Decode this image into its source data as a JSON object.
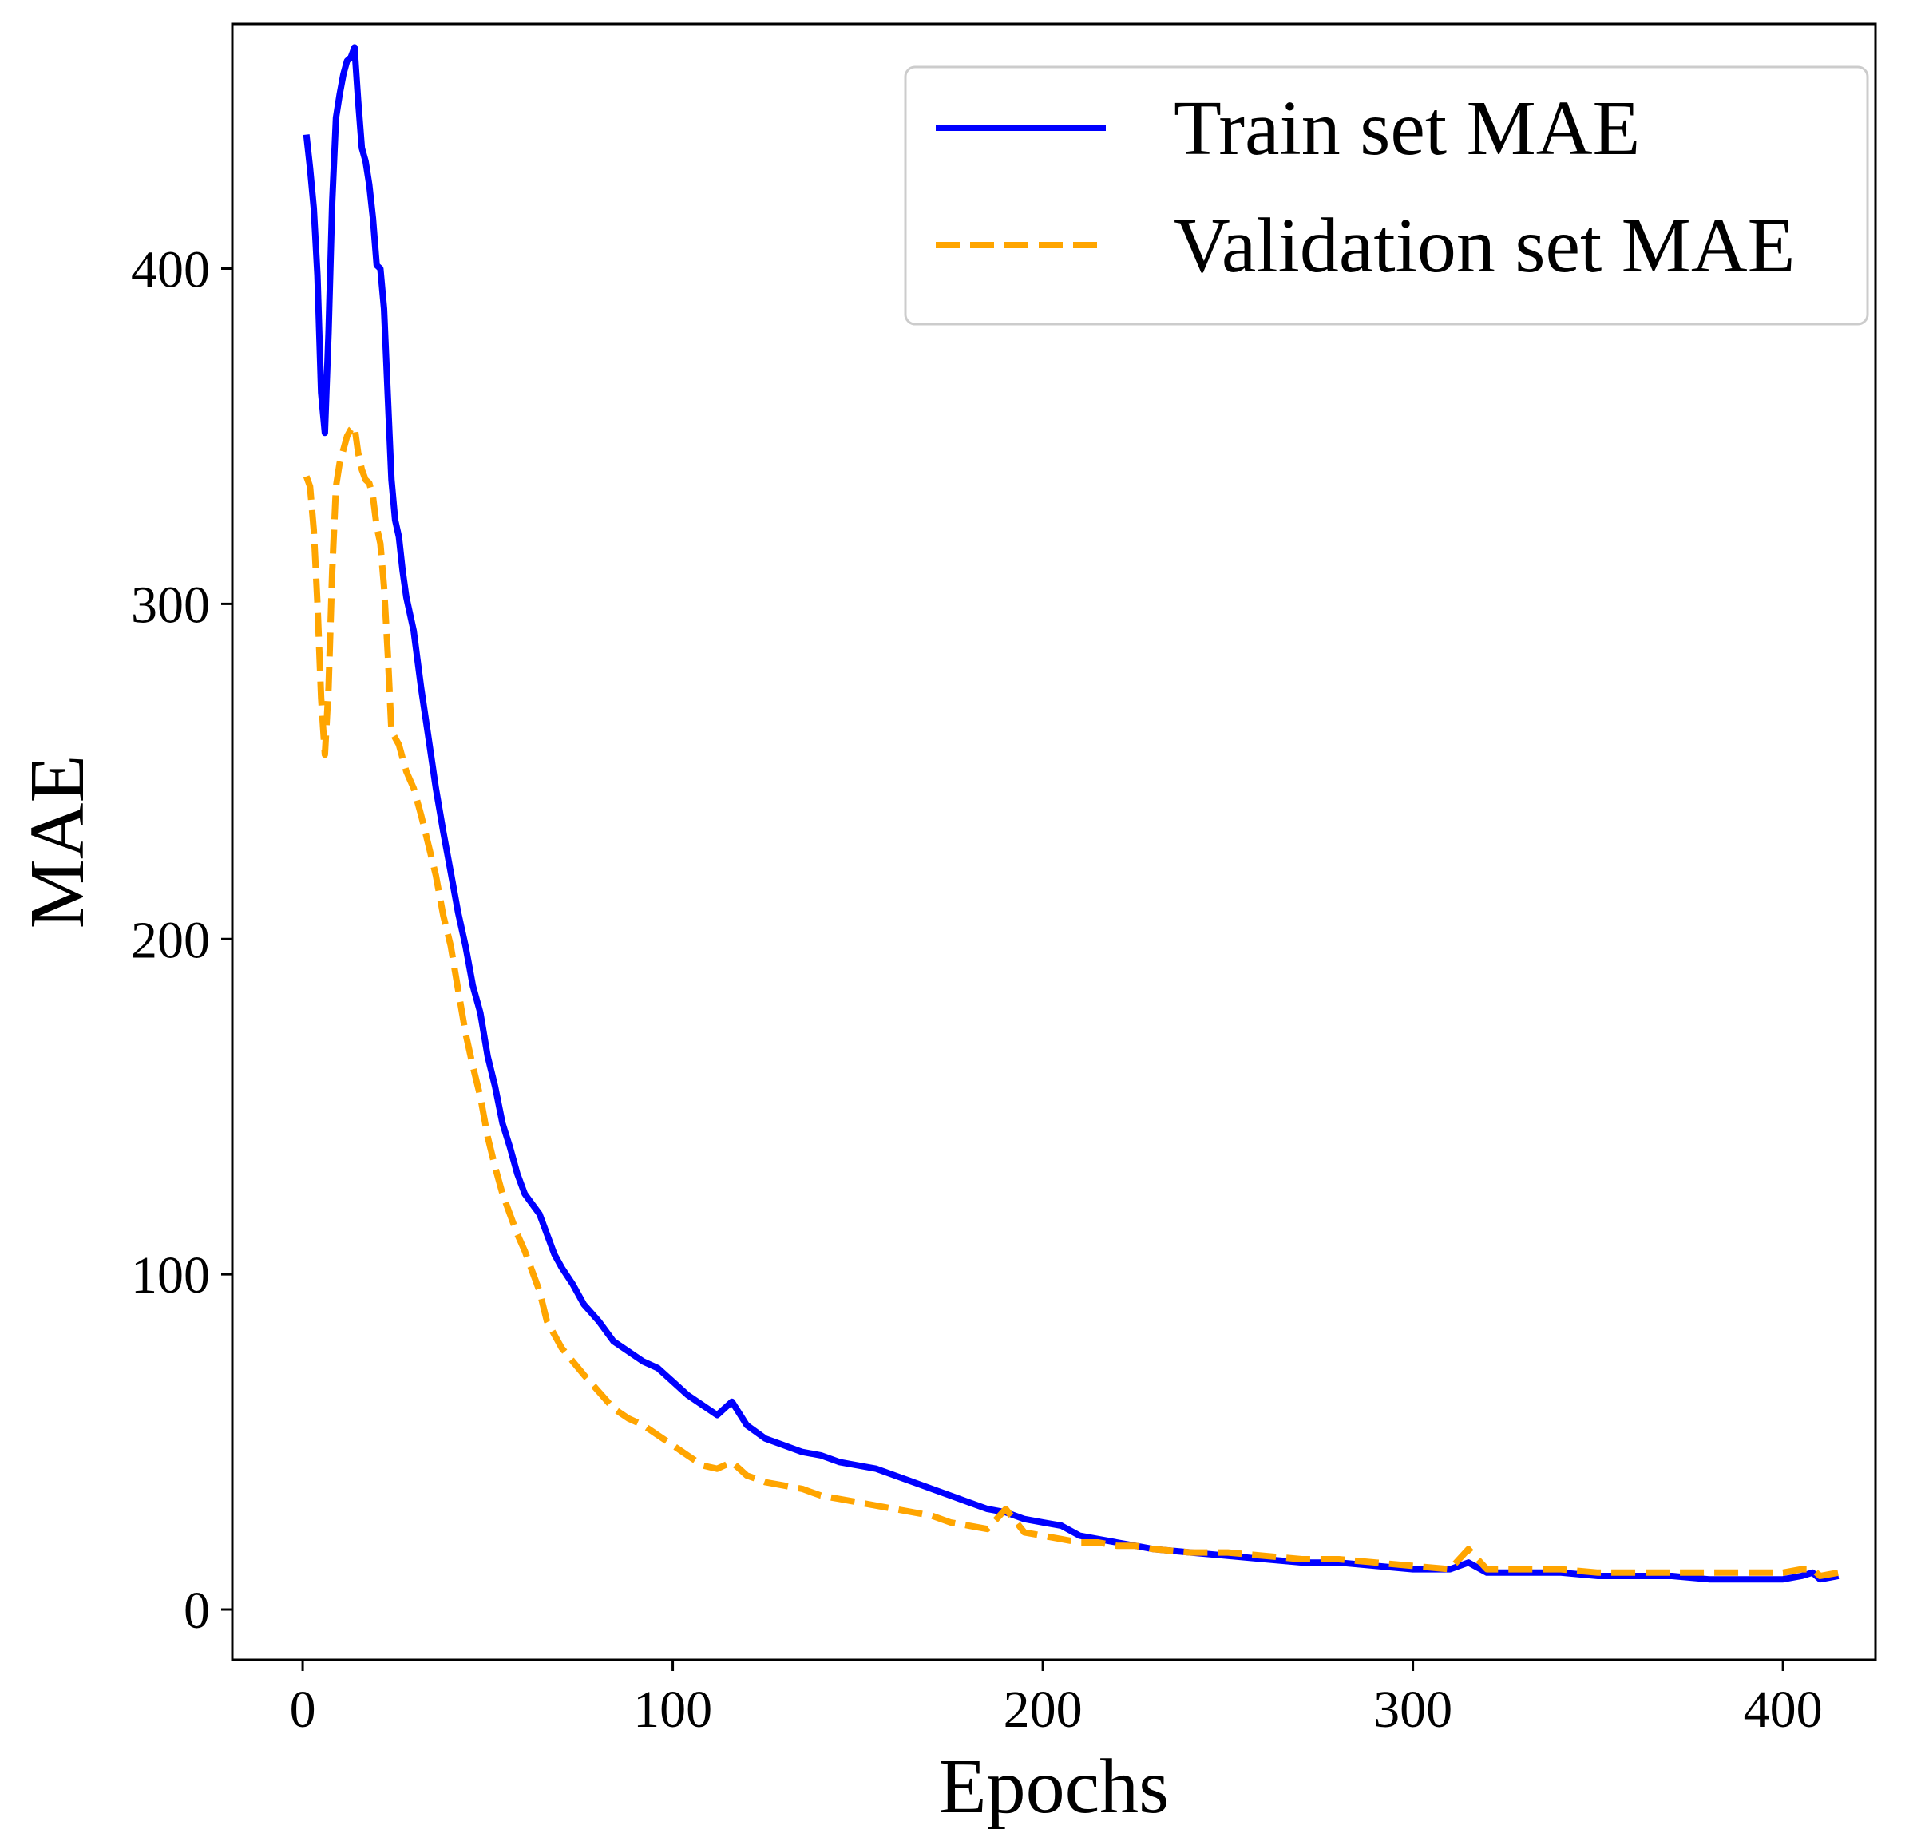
{
  "chart_data": {
    "type": "line",
    "title": "",
    "xlabel": "Epochs",
    "ylabel": "MAE",
    "xlim": [
      -19,
      425
    ],
    "ylim": [
      -15,
      473
    ],
    "xticks": [
      0,
      100,
      200,
      300,
      400
    ],
    "yticks": [
      0,
      100,
      200,
      300,
      400
    ],
    "grid": false,
    "legend": {
      "position": "top-right",
      "entries": [
        "Train set MAE",
        "Validation set MAE"
      ]
    },
    "series": [
      {
        "name": "Train set MAE",
        "color": "#0000ff",
        "style": "solid",
        "x": [
          1,
          2,
          3,
          4,
          5,
          6,
          7,
          8,
          9,
          10,
          11,
          12,
          13,
          14,
          15,
          16,
          17,
          18,
          19,
          20,
          21,
          22,
          23,
          24,
          25,
          26,
          27,
          28,
          30,
          32,
          34,
          36,
          38,
          40,
          42,
          44,
          46,
          48,
          50,
          52,
          54,
          56,
          58,
          60,
          62,
          64,
          66,
          68,
          70,
          73,
          76,
          80,
          84,
          88,
          92,
          96,
          100,
          104,
          108,
          112,
          116,
          120,
          125,
          130,
          135,
          140,
          145,
          150,
          155,
          160,
          165,
          170,
          175,
          180,
          185,
          190,
          195,
          200,
          205,
          210,
          215,
          220,
          225,
          230,
          240,
          250,
          260,
          270,
          280,
          290,
          300,
          310,
          315,
          320,
          330,
          340,
          350,
          360,
          370,
          380,
          390,
          400,
          405,
          408,
          410,
          415
        ],
        "y": [
          440,
          430,
          418,
          398,
          363,
          351,
          381,
          420,
          445,
          452,
          458,
          462,
          463,
          466,
          450,
          436,
          432,
          425,
          415,
          401,
          400,
          388,
          362,
          337,
          325,
          320,
          310,
          302,
          292,
          275,
          260,
          245,
          232,
          220,
          208,
          198,
          186,
          178,
          165,
          156,
          145,
          138,
          130,
          124,
          121,
          118,
          112,
          106,
          102,
          97,
          91,
          86,
          80,
          77,
          74,
          72,
          68,
          64,
          61,
          58,
          62,
          55,
          51,
          49,
          47,
          46,
          44,
          43,
          42,
          40,
          38,
          36,
          34,
          32,
          30,
          29,
          27,
          26,
          25,
          22,
          21,
          20,
          19,
          18,
          17,
          16,
          15,
          14,
          14,
          13,
          12,
          12,
          14,
          11,
          11,
          11,
          10,
          10,
          10,
          9,
          9,
          9,
          10,
          11,
          9,
          10
        ]
      },
      {
        "name": "Validation set MAE",
        "color": "#ffa500",
        "style": "dashed",
        "x": [
          1,
          2,
          3,
          4,
          5,
          6,
          7,
          8,
          9,
          10,
          11,
          12,
          13,
          14,
          15,
          16,
          17,
          18,
          19,
          20,
          21,
          22,
          23,
          24,
          25,
          26,
          27,
          28,
          30,
          32,
          34,
          36,
          38,
          40,
          42,
          44,
          46,
          48,
          50,
          52,
          54,
          56,
          58,
          60,
          62,
          64,
          66,
          68,
          70,
          73,
          76,
          80,
          84,
          88,
          92,
          96,
          100,
          104,
          108,
          112,
          116,
          120,
          125,
          130,
          135,
          140,
          145,
          150,
          155,
          160,
          165,
          170,
          175,
          180,
          185,
          190,
          195,
          200,
          205,
          210,
          215,
          220,
          225,
          230,
          240,
          250,
          260,
          270,
          280,
          290,
          300,
          310,
          315,
          320,
          330,
          340,
          350,
          360,
          370,
          380,
          390,
          400,
          405,
          408,
          410,
          415
        ],
        "y": [
          338,
          335,
          322,
          300,
          272,
          255,
          275,
          310,
          335,
          342,
          346,
          350,
          352,
          353,
          345,
          340,
          337,
          336,
          332,
          323,
          318,
          305,
          285,
          262,
          260,
          258,
          254,
          250,
          245,
          237,
          228,
          219,
          207,
          198,
          185,
          172,
          162,
          153,
          141,
          132,
          124,
          118,
          112,
          107,
          101,
          95,
          86,
          82,
          78,
          74,
          70,
          65,
          60,
          57,
          55,
          52,
          49,
          46,
          43,
          42,
          44,
          40,
          38,
          37,
          36,
          34,
          33,
          32,
          31,
          30,
          29,
          28,
          26,
          25,
          24,
          30,
          23,
          22,
          21,
          20,
          20,
          19,
          19,
          18,
          17,
          17,
          16,
          15,
          15,
          14,
          13,
          12,
          18,
          12,
          12,
          12,
          11,
          11,
          11,
          11,
          11,
          11,
          12,
          12,
          10,
          11
        ]
      }
    ]
  }
}
